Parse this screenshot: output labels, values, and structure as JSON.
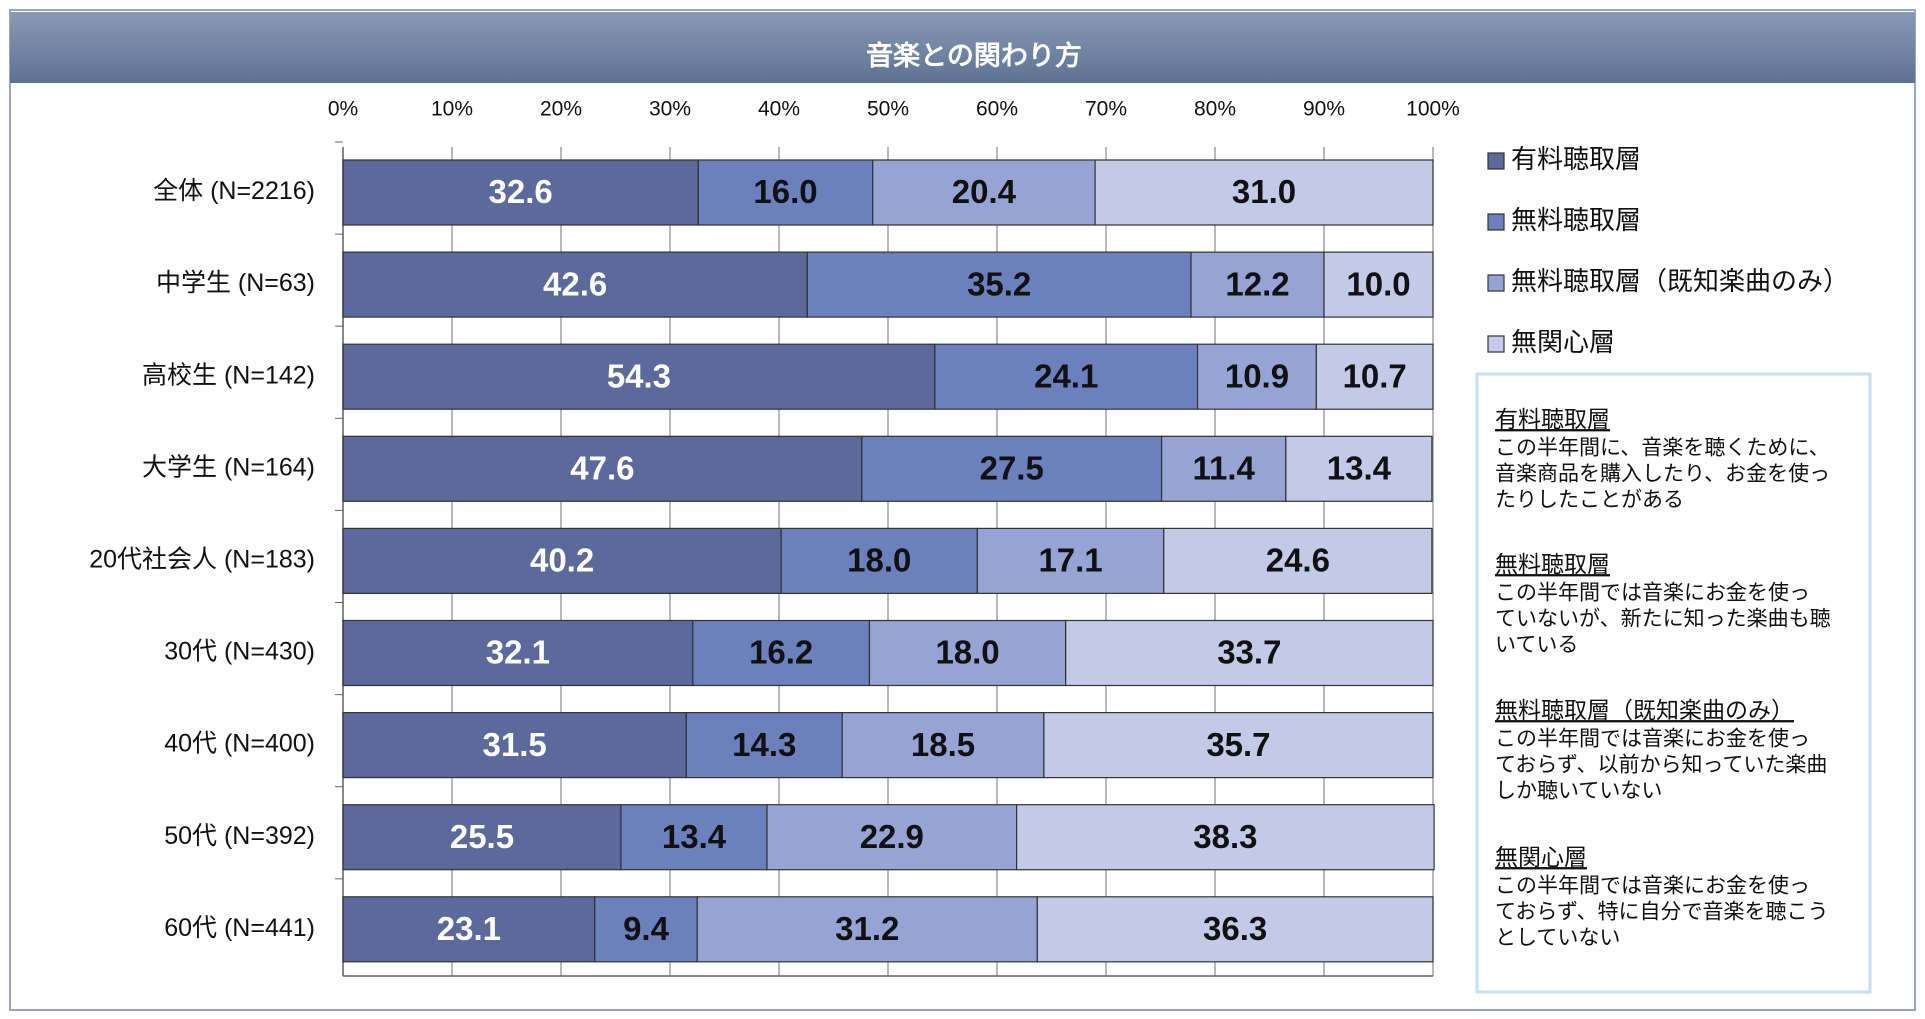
{
  "chart_data": {
    "type": "stacked_barh",
    "title": "音楽との関わり方",
    "categories": [
      "全体 (N=2216)",
      "中学生 (N=63)",
      "高校生 (N=142)",
      "大学生 (N=164)",
      "20代社会人 (N=183)",
      "30代 (N=430)",
      "40代 (N=400)",
      "50代 (N=392)",
      "60代 (N=441)"
    ],
    "series": [
      {
        "name": "有料聴取層",
        "color": "#5b699c",
        "label_color": "#ffffff",
        "values": [
          32.6,
          42.6,
          54.3,
          47.6,
          40.2,
          32.1,
          31.5,
          25.5,
          23.1
        ],
        "value_labels": [
          "32.6",
          "42.6",
          "54.3",
          "47.6",
          "40.2",
          "32.1",
          "31.5",
          "25.5",
          "23.1"
        ]
      },
      {
        "name": "無料聴取層",
        "color": "#6c80be",
        "label_color": "#111111",
        "values": [
          16.0,
          35.2,
          24.1,
          27.5,
          18.0,
          16.2,
          14.3,
          13.4,
          9.4
        ],
        "value_labels": [
          "16.0",
          "35.2",
          "24.1",
          "27.5",
          "18.0",
          "16.2",
          "14.3",
          "13.4",
          "9.4"
        ]
      },
      {
        "name": "無料聴取層（既知楽曲のみ）",
        "color": "#96a4d5",
        "label_color": "#111111",
        "values": [
          20.4,
          12.2,
          10.9,
          11.4,
          17.1,
          18.0,
          18.5,
          22.9,
          31.2
        ],
        "value_labels": [
          "20.4",
          "12.2",
          "10.9",
          "11.4",
          "17.1",
          "18.0",
          "18.5",
          "22.9",
          "31.2"
        ]
      },
      {
        "name": "無関心層",
        "color": "#c3cae7",
        "label_color": "#111111",
        "values": [
          31.0,
          10.0,
          10.7,
          13.4,
          24.6,
          33.7,
          35.7,
          38.3,
          36.3
        ],
        "value_labels": [
          "31.0",
          "10.0",
          "10.7",
          "13.4",
          "24.6",
          "33.7",
          "35.7",
          "38.3",
          "36.3"
        ]
      }
    ],
    "xlim": [
      0,
      100
    ],
    "xticks": [
      {
        "value": 0,
        "label": "0%"
      },
      {
        "value": 10,
        "label": "10%"
      },
      {
        "value": 20,
        "label": "20%"
      },
      {
        "value": 30,
        "label": "30%"
      },
      {
        "value": 40,
        "label": "40%"
      },
      {
        "value": 50,
        "label": "50%"
      },
      {
        "value": 60,
        "label": "60%"
      },
      {
        "value": 70,
        "label": "70%"
      },
      {
        "value": 80,
        "label": "80%"
      },
      {
        "value": 90,
        "label": "90%"
      },
      {
        "value": 100,
        "label": "100%"
      }
    ],
    "grid": true,
    "legend": "right",
    "definitions": [
      {
        "term": "有料聴取層",
        "lines": [
          "この半年間に、音楽を聴くために、",
          "音楽商品を購入したり、お金を使っ",
          "たりしたことがある"
        ]
      },
      {
        "term": "無料聴取層",
        "lines": [
          "この半年間では音楽にお金を使っ",
          "ていないが、新たに知った楽曲も聴",
          "いている"
        ]
      },
      {
        "term": "無料聴取層（既知楽曲のみ）",
        "lines": [
          "この半年間では音楽にお金を使っ",
          "ておらず、以前から知っていた楽曲",
          "しか聴いていない"
        ]
      },
      {
        "term": "無関心層",
        "lines": [
          "この半年間では音楽にお金を使っ",
          "ておらず、特に自分で音楽を聴こう",
          "としていない"
        ]
      }
    ]
  }
}
